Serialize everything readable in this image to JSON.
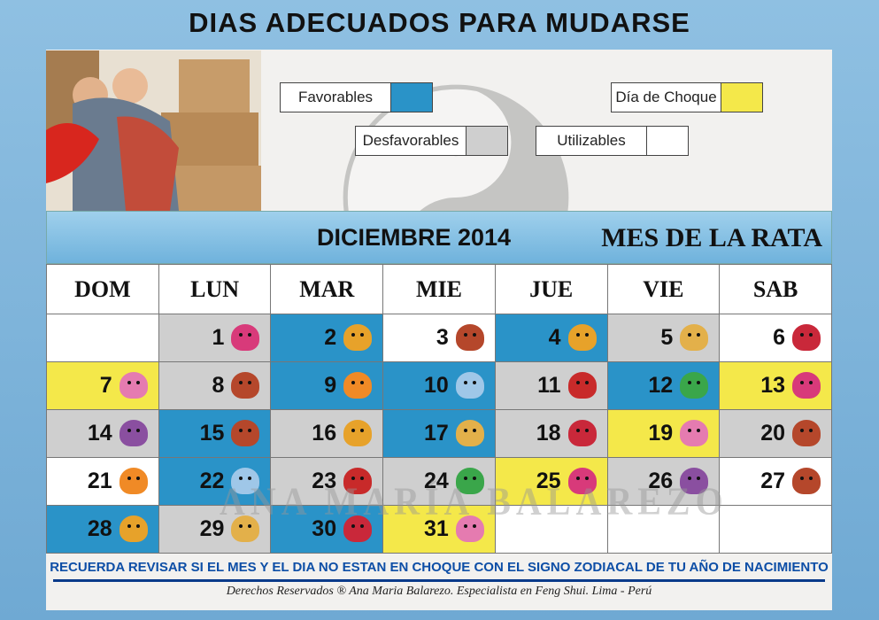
{
  "title": "DIAS ADECUADOS PARA MUDARSE",
  "legend": {
    "favorables": "Favorables",
    "choque": "Día de Choque",
    "desfavorables": "Desfavorables",
    "utilizables": "Utilizables"
  },
  "colors": {
    "favorable": "#2a93c8",
    "desfavorable": "#cfcfcf",
    "utilizable": "#ffffff",
    "choque": "#f4e84a"
  },
  "calendar": {
    "month": "DICIEMBRE 2014",
    "subtitle": "MES DE LA RATA",
    "days": [
      "DOM",
      "LUN",
      "MAR",
      "MIE",
      "JUE",
      "VIE",
      "SAB"
    ],
    "weeks": [
      [
        {
          "n": "",
          "t": "util",
          "a": ""
        },
        {
          "n": "1",
          "t": "des",
          "a": "horse"
        },
        {
          "n": "2",
          "t": "fav",
          "a": "rooster"
        },
        {
          "n": "3",
          "t": "util",
          "a": "ox"
        },
        {
          "n": "4",
          "t": "fav",
          "a": "rooster"
        },
        {
          "n": "5",
          "t": "des",
          "a": "dog"
        },
        {
          "n": "6",
          "t": "util",
          "a": "pig"
        }
      ],
      [
        {
          "n": "7",
          "t": "choq",
          "a": "rat"
        },
        {
          "n": "8",
          "t": "des",
          "a": "ox"
        },
        {
          "n": "9",
          "t": "fav",
          "a": "tiger"
        },
        {
          "n": "10",
          "t": "fav",
          "a": "rabbit"
        },
        {
          "n": "11",
          "t": "des",
          "a": "dragon"
        },
        {
          "n": "12",
          "t": "fav",
          "a": "snake"
        },
        {
          "n": "13",
          "t": "choq",
          "a": "horse"
        }
      ],
      [
        {
          "n": "14",
          "t": "des",
          "a": "goat"
        },
        {
          "n": "15",
          "t": "fav",
          "a": "ox"
        },
        {
          "n": "16",
          "t": "des",
          "a": "rooster"
        },
        {
          "n": "17",
          "t": "fav",
          "a": "dog"
        },
        {
          "n": "18",
          "t": "des",
          "a": "pig"
        },
        {
          "n": "19",
          "t": "choq",
          "a": "rat"
        },
        {
          "n": "20",
          "t": "des",
          "a": "ox"
        }
      ],
      [
        {
          "n": "21",
          "t": "util",
          "a": "tiger"
        },
        {
          "n": "22",
          "t": "fav",
          "a": "rabbit"
        },
        {
          "n": "23",
          "t": "des",
          "a": "dragon"
        },
        {
          "n": "24",
          "t": "des",
          "a": "snake"
        },
        {
          "n": "25",
          "t": "choq",
          "a": "horse"
        },
        {
          "n": "26",
          "t": "des",
          "a": "goat"
        },
        {
          "n": "27",
          "t": "util",
          "a": "ox"
        }
      ],
      [
        {
          "n": "28",
          "t": "fav",
          "a": "rooster"
        },
        {
          "n": "29",
          "t": "des",
          "a": "dog"
        },
        {
          "n": "30",
          "t": "fav",
          "a": "pig"
        },
        {
          "n": "31",
          "t": "choq",
          "a": "rat"
        },
        {
          "n": "",
          "t": "util",
          "a": ""
        },
        {
          "n": "",
          "t": "util",
          "a": ""
        },
        {
          "n": "",
          "t": "util",
          "a": ""
        }
      ]
    ]
  },
  "watermark": "ANA MARÍA BALAREZO",
  "footer": {
    "reminder": "RECUERDA REVISAR SI EL MES Y EL DIA NO ESTAN EN CHOQUE CON EL SIGNO ZODIACAL DE TU AÑO DE NACIMIENTO",
    "rights": "Derechos Reservados ® Ana Maria Balarezo. Especialista en Feng Shui. Lima - Perú"
  }
}
